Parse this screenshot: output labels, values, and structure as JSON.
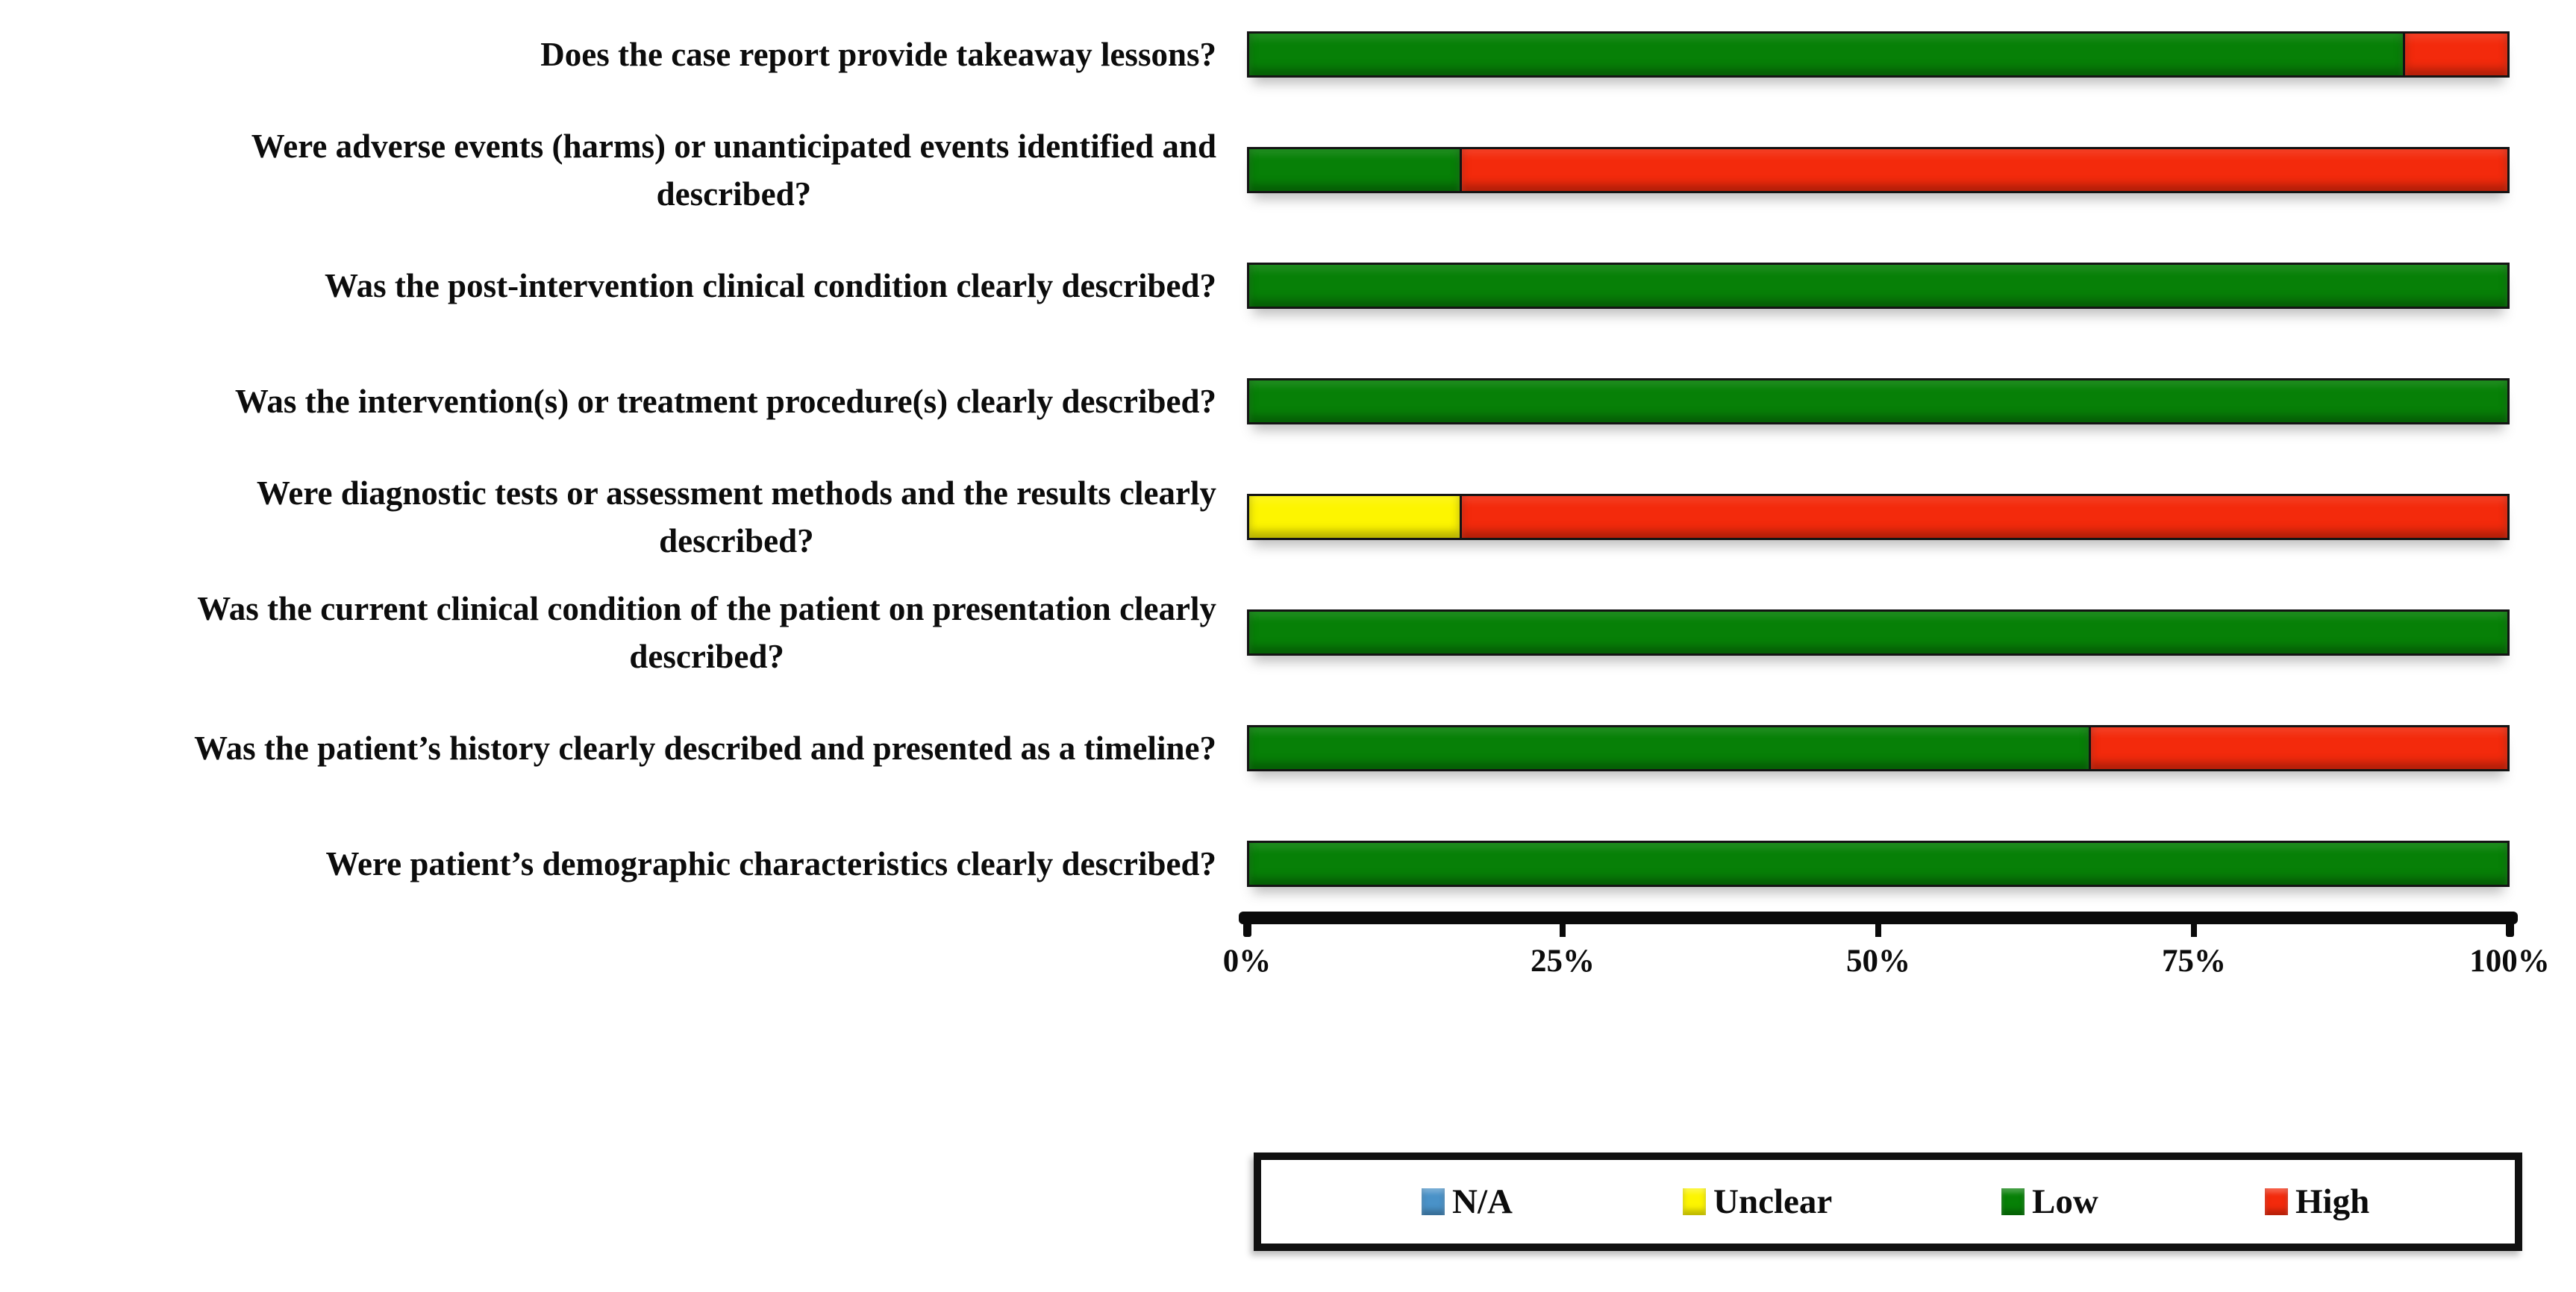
{
  "chart_data": {
    "type": "bar",
    "orientation": "horizontal-stacked",
    "unit": "percent",
    "title": "",
    "xlabel": "",
    "ylabel": "",
    "grid": false,
    "x_axis": {
      "range": [
        0,
        100
      ],
      "ticks": [
        "0%",
        "25%",
        "50%",
        "75%",
        "100%"
      ],
      "tick_values": [
        0,
        25,
        50,
        75,
        100
      ]
    },
    "categories": [
      "Does the case report provide takeaway lessons?",
      "Were adverse events (harms) or unanticipated events identified and\ndescribed?",
      "Was the post-intervention clinical condition clearly described?",
      "Was the intervention(s) or treatment procedure(s) clearly described?",
      "Were diagnostic tests or assessment methods and the results clearly\ndescribed?",
      "Was the current clinical condition of the patient on presentation clearly\ndescribed?",
      "Was the patient’s history clearly described and presented as a timeline?",
      "Were patient’s demographic characteristics clearly described?"
    ],
    "series": [
      {
        "name": "N/A",
        "color": "#4a92c8",
        "values": [
          0,
          0,
          0,
          0,
          0,
          0,
          0,
          0
        ]
      },
      {
        "name": "Unclear",
        "color": "#fdf500",
        "values": [
          0,
          0,
          0,
          0,
          16.7,
          0,
          0,
          0
        ]
      },
      {
        "name": "Low",
        "color": "#078007",
        "values": [
          91.7,
          16.7,
          100,
          100,
          0,
          100,
          66.7,
          100
        ]
      },
      {
        "name": "High",
        "color": "#f32a0c",
        "values": [
          8.3,
          83.3,
          0,
          0,
          83.3,
          0,
          33.3,
          0
        ]
      }
    ],
    "legend": {
      "position": "bottom",
      "entries": [
        "N/A",
        "Unclear",
        "Low",
        "High"
      ]
    }
  },
  "layout_text": {}
}
